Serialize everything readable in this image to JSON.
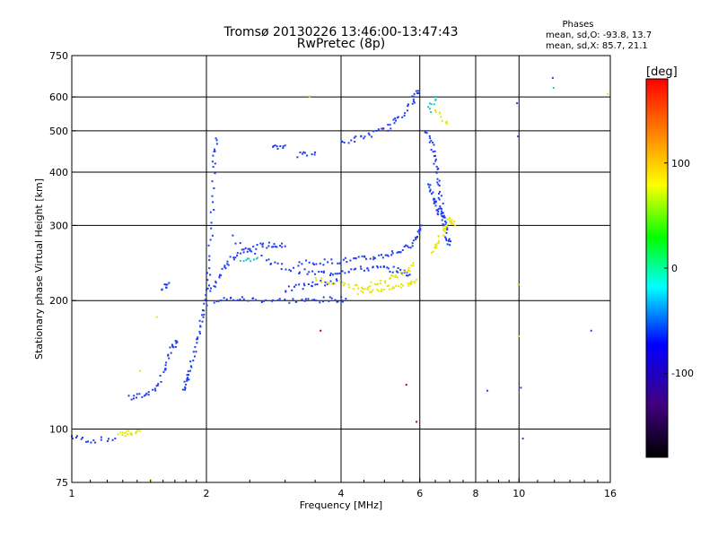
{
  "chart_data": {
    "type": "scatter",
    "title": "Tromsø 20130226 13:46:00-13:47:43",
    "subtitle": "RwPretec (8p)",
    "xlabel": "Frequency [MHz]",
    "ylabel": "Stationary phase Virtual Height [km]",
    "x_scale": "log",
    "y_scale": "log",
    "xlim": [
      1,
      16
    ],
    "ylim": [
      75,
      750
    ],
    "grid": true,
    "x_ticks": [
      1,
      2,
      4,
      6,
      8,
      10,
      16
    ],
    "y_ticks": [
      75,
      100,
      200,
      300,
      400,
      500,
      600,
      750
    ],
    "x_gridlines": [
      2,
      4,
      6,
      8,
      10
    ],
    "y_gridlines": [
      100,
      200,
      300,
      400,
      500,
      600
    ],
    "stats": {
      "heading": "Phases",
      "o_line": "mean, sd,O: -93.8, 13.7",
      "x_line": "mean, sd,X:  85.7, 21.1"
    },
    "colorbar": {
      "label": "[deg]",
      "range": [
        -180,
        180
      ],
      "ticks": [
        100,
        0,
        -100
      ],
      "colors": [
        "#ff0000",
        "#ff8000",
        "#ffff00",
        "#00ff00",
        "#00ffff",
        "#0000ff",
        "#400080",
        "#000000"
      ]
    },
    "series": [
      {
        "color": "#1e3cf0",
        "segments": [
          {
            "points": [
              [
                1.0,
                96
              ],
              [
                1.1,
                94
              ],
              [
                1.25,
                95
              ]
            ]
          },
          {
            "points": [
              [
                1.35,
                118
              ],
              [
                1.45,
                120
              ],
              [
                1.55,
                125
              ],
              [
                1.62,
                140
              ],
              [
                1.68,
                155
              ],
              [
                1.72,
                160
              ]
            ]
          },
          {
            "points": [
              [
                1.6,
                215
              ],
              [
                1.65,
                220
              ]
            ]
          },
          {
            "points": [
              [
                1.78,
                125
              ],
              [
                1.82,
                130
              ],
              [
                1.85,
                140
              ],
              [
                1.9,
                160
              ],
              [
                1.95,
                180
              ],
              [
                2.0,
                200
              ],
              [
                2.03,
                240
              ],
              [
                2.06,
                320
              ],
              [
                2.08,
                420
              ],
              [
                2.1,
                480
              ]
            ]
          },
          {
            "points": [
              [
                2.05,
                210
              ],
              [
                2.15,
                230
              ],
              [
                2.25,
                248
              ],
              [
                2.4,
                262
              ],
              [
                2.6,
                268
              ],
              [
                2.8,
                270
              ],
              [
                3.0,
                268
              ]
            ]
          },
          {
            "points": [
              [
                2.1,
                200
              ],
              [
                2.3,
                202
              ],
              [
                2.6,
                201
              ],
              [
                3.0,
                200
              ],
              [
                3.4,
                200
              ],
              [
                3.8,
                201
              ],
              [
                4.1,
                202
              ]
            ]
          },
          {
            "points": [
              [
                2.3,
                280
              ],
              [
                2.7,
                250
              ],
              [
                3.0,
                238
              ],
              [
                3.4,
                232
              ],
              [
                3.8,
                232
              ],
              [
                4.2,
                236
              ],
              [
                4.6,
                238
              ],
              [
                5.0,
                238
              ],
              [
                5.4,
                235
              ],
              [
                5.7,
                230
              ]
            ]
          },
          {
            "points": [
              [
                3.2,
                245
              ],
              [
                3.6,
                246
              ],
              [
                4.0,
                248
              ],
              [
                4.4,
                250
              ],
              [
                4.8,
                253
              ],
              [
                5.2,
                258
              ],
              [
                5.6,
                265
              ],
              [
                5.9,
                280
              ],
              [
                6.05,
                300
              ]
            ]
          },
          {
            "points": [
              [
                3.0,
                212
              ],
              [
                3.3,
                216
              ],
              [
                3.6,
                220
              ],
              [
                4.0,
                222
              ]
            ]
          },
          {
            "points": [
              [
                4.0,
                470
              ],
              [
                4.4,
                480
              ],
              [
                4.8,
                495
              ],
              [
                5.2,
                515
              ],
              [
                5.5,
                550
              ],
              [
                5.8,
                590
              ],
              [
                5.95,
                620
              ]
            ]
          },
          {
            "points": [
              [
                2.8,
                455
              ],
              [
                3.0,
                462
              ]
            ]
          },
          {
            "points": [
              [
                3.2,
                440
              ],
              [
                3.5,
                445
              ]
            ]
          },
          {
            "points": [
              [
                6.2,
                500
              ],
              [
                6.4,
                460
              ],
              [
                6.5,
                420
              ],
              [
                6.6,
                380
              ],
              [
                6.7,
                340
              ],
              [
                6.8,
                310
              ],
              [
                6.9,
                285
              ],
              [
                7.0,
                270
              ]
            ]
          },
          {
            "points": [
              [
                6.25,
                380
              ],
              [
                6.4,
                350
              ],
              [
                6.55,
                330
              ],
              [
                6.7,
                315
              ],
              [
                6.85,
                300
              ]
            ]
          }
        ]
      },
      {
        "color": "#e6e600",
        "segments": [
          {
            "points": [
              [
                1.28,
                97
              ],
              [
                1.35,
                98
              ],
              [
                1.42,
                99
              ]
            ]
          },
          {
            "points": [
              [
                3.5,
                225
              ],
              [
                3.9,
                220
              ],
              [
                4.3,
                215
              ],
              [
                4.7,
                218
              ],
              [
                5.1,
                224
              ],
              [
                5.5,
                232
              ],
              [
                5.8,
                245
              ]
            ]
          },
          {
            "points": [
              [
                4.4,
                210
              ],
              [
                4.8,
                212
              ],
              [
                5.2,
                214
              ],
              [
                5.6,
                218
              ],
              [
                5.9,
                224
              ]
            ]
          },
          {
            "points": [
              [
                6.4,
                260
              ],
              [
                6.6,
                275
              ],
              [
                6.8,
                295
              ],
              [
                7.0,
                310
              ],
              [
                7.2,
                300
              ]
            ]
          },
          {
            "points": [
              [
                6.5,
                560
              ],
              [
                6.9,
                520
              ]
            ]
          }
        ]
      },
      {
        "color": "#19c8c8",
        "segments": [
          {
            "points": [
              [
                2.4,
                250
              ],
              [
                2.6,
                252
              ]
            ]
          },
          {
            "points": [
              [
                6.3,
                560
              ],
              [
                6.5,
                600
              ]
            ]
          }
        ]
      }
    ],
    "isolated_points": [
      {
        "f": 1.42,
        "h": 137,
        "color": "#e6e600"
      },
      {
        "f": 1.55,
        "h": 183,
        "color": "#e6e600"
      },
      {
        "f": 3.6,
        "h": 170,
        "color": "#c00000"
      },
      {
        "f": 5.6,
        "h": 127,
        "color": "#c00000"
      },
      {
        "f": 5.9,
        "h": 104,
        "color": "#c00000"
      },
      {
        "f": 8.5,
        "h": 123,
        "color": "#1e3cf0"
      },
      {
        "f": 9.9,
        "h": 580,
        "color": "#1e3cf0"
      },
      {
        "f": 9.95,
        "h": 485,
        "color": "#1e3cf0"
      },
      {
        "f": 10.1,
        "h": 125,
        "color": "#1e3cf0"
      },
      {
        "f": 10.2,
        "h": 95,
        "color": "#1e3cf0"
      },
      {
        "f": 9.98,
        "h": 165,
        "color": "#e6e600"
      },
      {
        "f": 9.97,
        "h": 218,
        "color": "#e6e600"
      },
      {
        "f": 11.9,
        "h": 665,
        "color": "#1e3cf0"
      },
      {
        "f": 11.95,
        "h": 630,
        "color": "#19c8c8"
      },
      {
        "f": 14.5,
        "h": 170,
        "color": "#1e3cf0"
      },
      {
        "f": 15.8,
        "h": 610,
        "color": "#e6e600"
      },
      {
        "f": 3.4,
        "h": 602,
        "color": "#e6e600"
      },
      {
        "f": 1.5,
        "h": 76,
        "color": "#e6e600"
      }
    ]
  }
}
